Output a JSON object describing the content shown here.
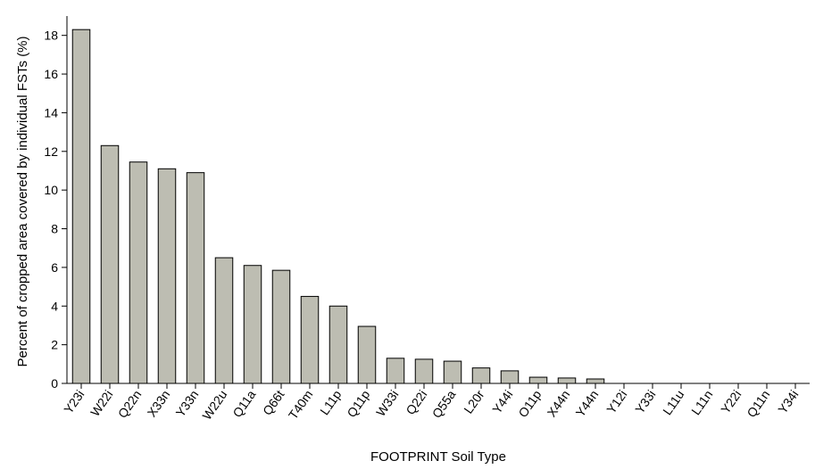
{
  "chart_data": {
    "type": "bar",
    "xlabel": "FOOTPRINT Soil Type",
    "ylabel": "Percent of cropped area covered by individual FSTs (%)",
    "categories": [
      "Y23i",
      "W22i",
      "Q22n",
      "X33n",
      "Y33n",
      "W22u",
      "Q11a",
      "Q66t",
      "T40m",
      "L11p",
      "Q11p",
      "W33i",
      "Q22i",
      "Q55a",
      "L20r",
      "Y44i",
      "O11p",
      "X44n",
      "Y44n",
      "Y12i",
      "Y33i",
      "L11u",
      "L11n",
      "Y22i",
      "Q11n",
      "Y34i"
    ],
    "values": [
      18.3,
      12.3,
      11.45,
      11.1,
      10.9,
      6.5,
      6.1,
      5.85,
      4.5,
      4.0,
      2.95,
      1.3,
      1.25,
      1.15,
      0.8,
      0.65,
      0.32,
      0.28,
      0.23,
      0,
      0,
      0,
      0,
      0,
      0,
      0
    ],
    "ylim": [
      0,
      19
    ],
    "yticks": [
      0,
      2,
      4,
      6,
      8,
      10,
      12,
      14,
      16,
      18
    ],
    "bar_color": "#bdbdb2",
    "grid": false
  }
}
